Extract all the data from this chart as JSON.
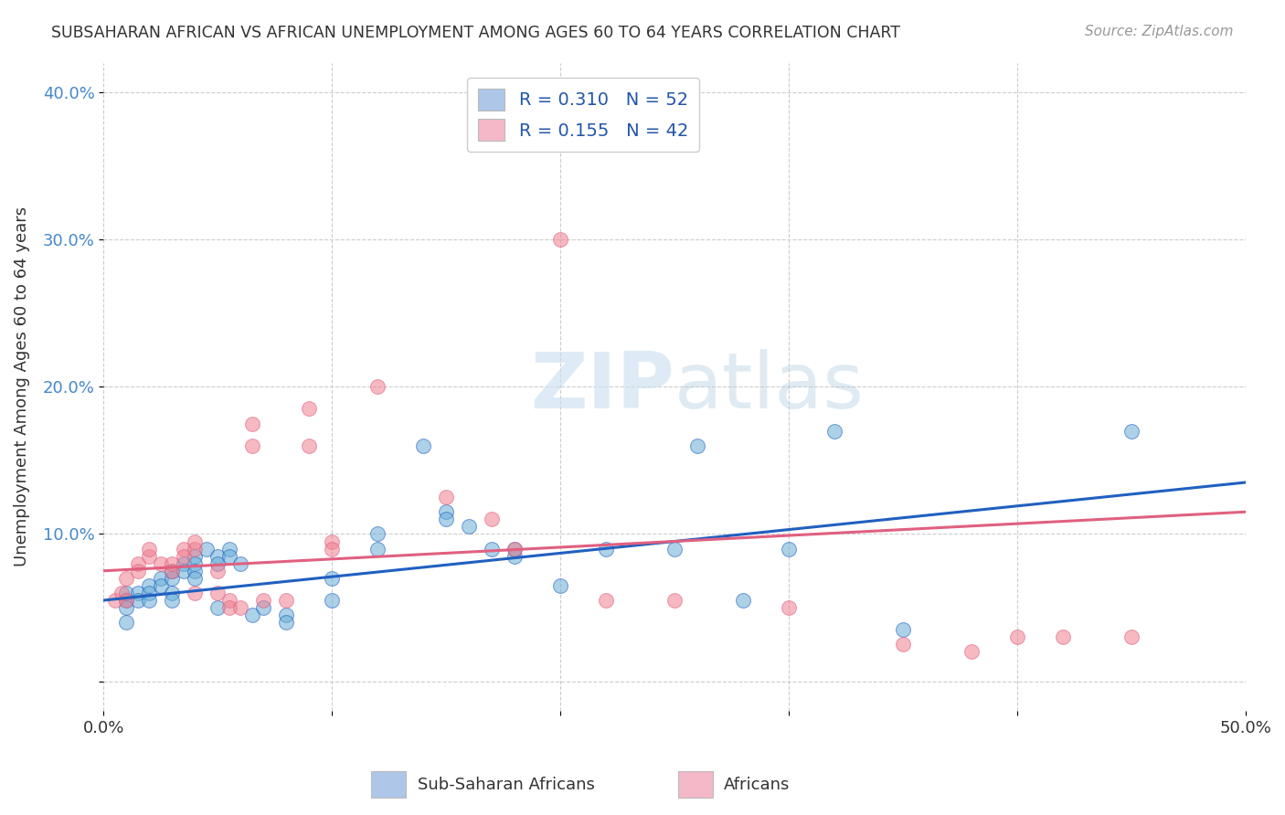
{
  "title": "SUBSAHARAN AFRICAN VS AFRICAN UNEMPLOYMENT AMONG AGES 60 TO 64 YEARS CORRELATION CHART",
  "source": "Source: ZipAtlas.com",
  "ylabel": "Unemployment Among Ages 60 to 64 years",
  "xlim": [
    0.0,
    0.5
  ],
  "ylim": [
    -0.02,
    0.42
  ],
  "yticks": [
    0.0,
    0.1,
    0.2,
    0.3,
    0.4
  ],
  "ytick_labels": [
    "",
    "10.0%",
    "20.0%",
    "30.0%",
    "40.0%"
  ],
  "xticks": [
    0.0,
    0.1,
    0.2,
    0.3,
    0.4,
    0.5
  ],
  "xtick_labels": [
    "0.0%",
    "",
    "",
    "",
    "",
    "50.0%"
  ],
  "legend_entries": [
    {
      "label": "R = 0.310   N = 52",
      "color": "#aec6e8"
    },
    {
      "label": "R = 0.155   N = 42",
      "color": "#f4b8c8"
    }
  ],
  "series1_color": "#6aaed6",
  "series2_color": "#f08090",
  "series1_line_color": "#2060c0",
  "series2_line_color": "#e06080",
  "watermark_zip": "ZIP",
  "watermark_atlas": "atlas",
  "blue_dots": [
    [
      0.01,
      0.04
    ],
    [
      0.01,
      0.055
    ],
    [
      0.01,
      0.05
    ],
    [
      0.01,
      0.06
    ],
    [
      0.015,
      0.06
    ],
    [
      0.015,
      0.055
    ],
    [
      0.02,
      0.065
    ],
    [
      0.02,
      0.06
    ],
    [
      0.02,
      0.055
    ],
    [
      0.025,
      0.07
    ],
    [
      0.025,
      0.065
    ],
    [
      0.03,
      0.07
    ],
    [
      0.03,
      0.075
    ],
    [
      0.03,
      0.06
    ],
    [
      0.03,
      0.055
    ],
    [
      0.035,
      0.08
    ],
    [
      0.035,
      0.075
    ],
    [
      0.04,
      0.085
    ],
    [
      0.04,
      0.08
    ],
    [
      0.04,
      0.075
    ],
    [
      0.04,
      0.07
    ],
    [
      0.045,
      0.09
    ],
    [
      0.05,
      0.085
    ],
    [
      0.05,
      0.08
    ],
    [
      0.05,
      0.05
    ],
    [
      0.055,
      0.09
    ],
    [
      0.055,
      0.085
    ],
    [
      0.06,
      0.08
    ],
    [
      0.065,
      0.045
    ],
    [
      0.07,
      0.05
    ],
    [
      0.08,
      0.045
    ],
    [
      0.08,
      0.04
    ],
    [
      0.1,
      0.055
    ],
    [
      0.1,
      0.07
    ],
    [
      0.12,
      0.09
    ],
    [
      0.12,
      0.1
    ],
    [
      0.14,
      0.16
    ],
    [
      0.15,
      0.115
    ],
    [
      0.15,
      0.11
    ],
    [
      0.16,
      0.105
    ],
    [
      0.17,
      0.09
    ],
    [
      0.18,
      0.085
    ],
    [
      0.18,
      0.09
    ],
    [
      0.2,
      0.065
    ],
    [
      0.22,
      0.09
    ],
    [
      0.25,
      0.09
    ],
    [
      0.26,
      0.16
    ],
    [
      0.28,
      0.055
    ],
    [
      0.3,
      0.09
    ],
    [
      0.32,
      0.17
    ],
    [
      0.35,
      0.035
    ],
    [
      0.45,
      0.17
    ]
  ],
  "pink_dots": [
    [
      0.005,
      0.055
    ],
    [
      0.008,
      0.06
    ],
    [
      0.01,
      0.055
    ],
    [
      0.01,
      0.07
    ],
    [
      0.015,
      0.08
    ],
    [
      0.015,
      0.075
    ],
    [
      0.02,
      0.085
    ],
    [
      0.02,
      0.09
    ],
    [
      0.025,
      0.08
    ],
    [
      0.03,
      0.075
    ],
    [
      0.03,
      0.08
    ],
    [
      0.035,
      0.09
    ],
    [
      0.035,
      0.085
    ],
    [
      0.04,
      0.09
    ],
    [
      0.04,
      0.095
    ],
    [
      0.04,
      0.06
    ],
    [
      0.05,
      0.075
    ],
    [
      0.05,
      0.06
    ],
    [
      0.055,
      0.055
    ],
    [
      0.055,
      0.05
    ],
    [
      0.06,
      0.05
    ],
    [
      0.065,
      0.16
    ],
    [
      0.065,
      0.175
    ],
    [
      0.07,
      0.055
    ],
    [
      0.08,
      0.055
    ],
    [
      0.09,
      0.16
    ],
    [
      0.09,
      0.185
    ],
    [
      0.1,
      0.095
    ],
    [
      0.1,
      0.09
    ],
    [
      0.12,
      0.2
    ],
    [
      0.15,
      0.125
    ],
    [
      0.17,
      0.11
    ],
    [
      0.18,
      0.09
    ],
    [
      0.2,
      0.3
    ],
    [
      0.22,
      0.055
    ],
    [
      0.25,
      0.055
    ],
    [
      0.3,
      0.05
    ],
    [
      0.35,
      0.025
    ],
    [
      0.38,
      0.02
    ],
    [
      0.4,
      0.03
    ],
    [
      0.42,
      0.03
    ],
    [
      0.45,
      0.03
    ]
  ],
  "blue_line": {
    "x0": 0.0,
    "y0": 0.055,
    "x1": 0.5,
    "y1": 0.135
  },
  "pink_line": {
    "x0": 0.0,
    "y0": 0.075,
    "x1": 0.5,
    "y1": 0.115
  },
  "bottom_legend": [
    {
      "label": "Sub-Saharan Africans",
      "color": "#aec6e8"
    },
    {
      "label": "Africans",
      "color": "#f4b8c8"
    }
  ]
}
